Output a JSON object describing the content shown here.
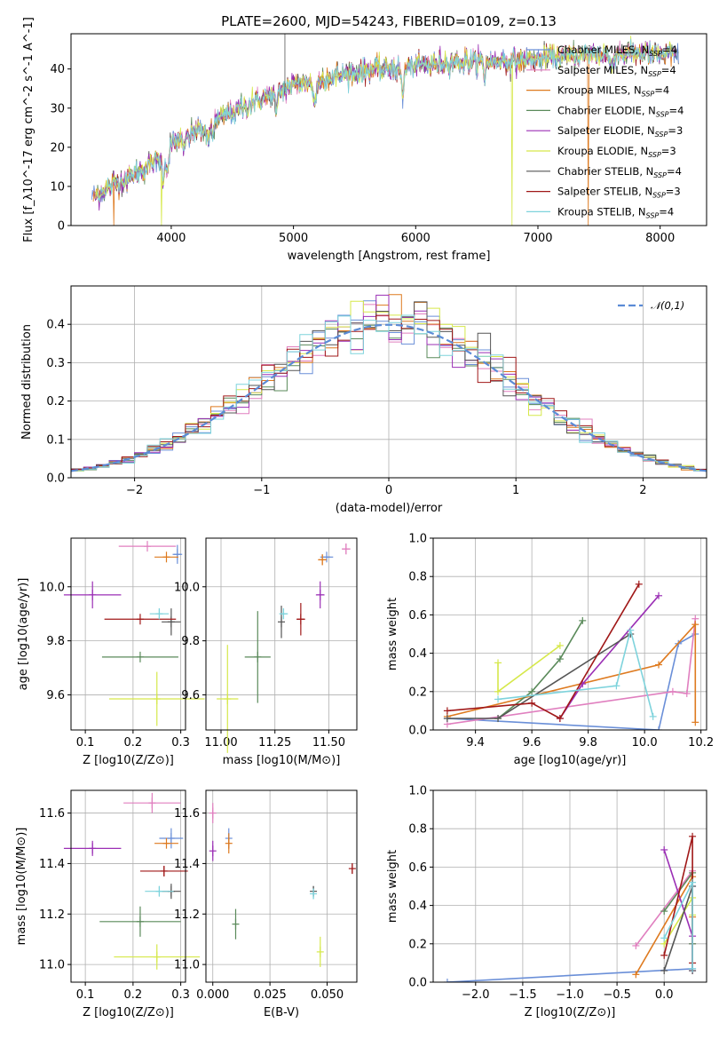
{
  "colors": {
    "Chabrier MILES": "#6a8fd8",
    "Salpeter MILES": "#e07fbf",
    "Kroupa MILES": "#de7a1f",
    "Chabrier ELODIE": "#5a8a5a",
    "Salpeter ELODIE": "#9b2fb5",
    "Kroupa ELODIE": "#d6e84a",
    "Chabrier STELIB": "#555555",
    "Salpeter STELIB": "#a01818",
    "Kroupa STELIB": "#7ed3dc",
    "gaussian": "#5b8bd6"
  },
  "chart_data": [
    {
      "id": "spectrum",
      "type": "line",
      "title": "PLATE=2600, MJD=54243, FIBERID=0109, z=0.13",
      "xlabel": "wavelength [Angstrom, rest frame]",
      "ylabel": "Flux [f_λ10^-17 erg cm^-2 s^-1 A^-1]",
      "xlim": [
        3180,
        8380
      ],
      "ylim": [
        0,
        49
      ],
      "xticks": [
        "4000",
        "5000",
        "6000",
        "7000",
        "8000"
      ],
      "yticks": [
        "0",
        "10",
        "20",
        "30",
        "40"
      ],
      "legend_position": "right",
      "legend": [
        {
          "name": "Chabrier MILES",
          "nssp": "4"
        },
        {
          "name": "Salpeter MILES",
          "nssp": "4"
        },
        {
          "name": "Kroupa MILES",
          "nssp": "4"
        },
        {
          "name": "Chabrier ELODIE",
          "nssp": "4"
        },
        {
          "name": "Salpeter ELODIE",
          "nssp": "3"
        },
        {
          "name": "Kroupa ELODIE",
          "nssp": "3"
        },
        {
          "name": "Chabrier STELIB",
          "nssp": "4"
        },
        {
          "name": "Salpeter STELIB",
          "nssp": "3"
        },
        {
          "name": "Kroupa STELIB",
          "nssp": "4"
        }
      ],
      "continuum": {
        "x": [
          3350,
          3500,
          3700,
          3900,
          4000,
          4200,
          4500,
          4800,
          5000,
          5300,
          5600,
          5900,
          6200,
          6500,
          6800,
          7000,
          7300,
          7600,
          7900,
          8150
        ],
        "y": [
          7,
          10,
          13,
          17,
          21,
          24,
          29,
          33,
          36,
          38,
          39.5,
          40.5,
          41.5,
          42,
          42,
          42.5,
          43.5,
          44,
          44,
          43.5
        ]
      },
      "dips": [
        {
          "x": 3530,
          "model": "Kroupa MILES",
          "y": 0
        },
        {
          "x": 3920,
          "model": "Kroupa ELODIE",
          "y": 0
        },
        {
          "x": 6790,
          "model": "Kroupa ELODIE",
          "y": 0
        },
        {
          "x": 7410,
          "model": "Kroupa MILES",
          "y": 0
        }
      ]
    },
    {
      "id": "residuals",
      "type": "line",
      "xlabel": "(data-model)/error",
      "ylabel": "Normed distribution",
      "xlim": [
        -2.5,
        2.5
      ],
      "ylim": [
        0,
        0.5
      ],
      "xticks": [
        "−2",
        "−1",
        "0",
        "1",
        "2"
      ],
      "yticks": [
        "0.0",
        "0.1",
        "0.2",
        "0.3",
        "0.4"
      ],
      "grid": true,
      "legend_position": "top-right",
      "legend": [
        "𝒩(0,1)"
      ],
      "bins": 50,
      "series": "histogram of normalised residuals for each of the nine models, following a unit normal"
    },
    {
      "id": "age-Z",
      "type": "scatter",
      "xlabel": "Z [log10(Z/Z⊙)]",
      "ylabel": "age  [log10(age/yr)]",
      "xlim": [
        0.07,
        0.31
      ],
      "ylim": [
        9.47,
        10.18
      ],
      "xticks": [
        "0.1",
        "0.2",
        "0.3"
      ],
      "yticks": [
        "9.6",
        "9.8",
        "10.0"
      ],
      "grid": true,
      "points": [
        {
          "model": "Chabrier MILES",
          "x": 0.293,
          "y": 10.12,
          "xerr": 0.01,
          "yerr": 0.035
        },
        {
          "model": "Salpeter MILES",
          "x": 0.23,
          "y": 10.15,
          "xerr": 0.06,
          "yerr": 0.0
        },
        {
          "model": "Kroupa MILES",
          "x": 0.27,
          "y": 10.11,
          "xerr": 0.025,
          "yerr": 0.0
        },
        {
          "model": "Chabrier ELODIE",
          "x": 0.215,
          "y": 9.74,
          "xerr": 0.08,
          "yerr": 0.0
        },
        {
          "model": "Salpeter ELODIE",
          "x": 0.115,
          "y": 9.97,
          "xerr": 0.06,
          "yerr": 0.05
        },
        {
          "model": "Kroupa ELODIE",
          "x": 0.25,
          "y": 9.585,
          "xerr": 0.1,
          "yerr": 0.1
        },
        {
          "model": "Chabrier STELIB",
          "x": 0.28,
          "y": 9.87,
          "xerr": 0.02,
          "yerr": 0.05
        },
        {
          "model": "Salpeter STELIB",
          "x": 0.215,
          "y": 9.88,
          "xerr": 0.075,
          "yerr": 0.0
        },
        {
          "model": "Kroupa STELIB",
          "x": 0.255,
          "y": 9.9,
          "xerr": 0.02,
          "yerr": 0.02
        }
      ]
    },
    {
      "id": "age-mass",
      "type": "scatter",
      "xlabel": "mass [log10(M/M⊙)]",
      "ylabel": "",
      "xlim": [
        10.93,
        11.63
      ],
      "ylim": [
        9.47,
        10.18
      ],
      "xticks": [
        "11.00",
        "11.25",
        "11.50"
      ],
      "yticks": [
        "9.6",
        "9.8",
        "10.0"
      ],
      "grid": true,
      "points": [
        {
          "model": "Chabrier MILES",
          "x": 11.49,
          "y": 10.11,
          "xerr": 0.03,
          "yerr": 0.0
        },
        {
          "model": "Salpeter MILES",
          "x": 11.58,
          "y": 10.14,
          "xerr": 0.02,
          "yerr": 0.02
        },
        {
          "model": "Kroupa MILES",
          "x": 11.47,
          "y": 10.1,
          "xerr": 0.02,
          "yerr": 0.02
        },
        {
          "model": "Chabrier ELODIE",
          "x": 11.17,
          "y": 9.74,
          "xerr": 0.06,
          "yerr": 0.17
        },
        {
          "model": "Salpeter ELODIE",
          "x": 11.46,
          "y": 9.97,
          "xerr": 0.02,
          "yerr": 0.05
        },
        {
          "model": "Kroupa ELODIE",
          "x": 11.03,
          "y": 9.585,
          "xerr": 0.05,
          "yerr": 0.2
        },
        {
          "model": "Chabrier STELIB",
          "x": 11.28,
          "y": 9.87,
          "xerr": 0.0,
          "yerr": 0.06
        },
        {
          "model": "Salpeter STELIB",
          "x": 11.37,
          "y": 9.88,
          "xerr": 0.02,
          "yerr": 0.06
        },
        {
          "model": "Kroupa STELIB",
          "x": 11.29,
          "y": 9.9,
          "xerr": 0.02,
          "yerr": 0.02
        }
      ]
    },
    {
      "id": "weight-age",
      "type": "line",
      "xlabel": "age  [log10(age/yr)]",
      "ylabel": "mass weight",
      "xlim": [
        9.25,
        10.22
      ],
      "ylim": [
        0,
        1
      ],
      "xticks": [
        "9.4",
        "9.6",
        "9.8",
        "10.0",
        "10.2"
      ],
      "yticks": [
        "0.0",
        "0.2",
        "0.4",
        "0.6",
        "0.8",
        "1.0"
      ],
      "grid": true,
      "series": [
        {
          "model": "Chabrier MILES",
          "x": [
            9.3,
            10.05,
            10.12,
            10.18
          ],
          "y": [
            0.06,
            0.0,
            0.45,
            0.5
          ]
        },
        {
          "model": "Salpeter MILES",
          "x": [
            9.3,
            10.1,
            10.15,
            10.18
          ],
          "y": [
            0.03,
            0.2,
            0.19,
            0.58
          ]
        },
        {
          "model": "Kroupa MILES",
          "x": [
            9.3,
            10.05,
            10.18,
            10.18
          ],
          "y": [
            0.07,
            0.34,
            0.55,
            0.04
          ]
        },
        {
          "model": "Chabrier ELODIE",
          "x": [
            9.48,
            9.6,
            9.7,
            9.78
          ],
          "y": [
            0.06,
            0.2,
            0.37,
            0.57
          ]
        },
        {
          "model": "Salpeter ELODIE",
          "x": [
            9.7,
            9.78,
            10.05
          ],
          "y": [
            0.06,
            0.24,
            0.7
          ]
        },
        {
          "model": "Kroupa ELODIE",
          "x": [
            9.48,
            9.48,
            9.7
          ],
          "y": [
            0.35,
            0.2,
            0.44
          ]
        },
        {
          "model": "Chabrier STELIB",
          "x": [
            9.3,
            9.48,
            9.95
          ],
          "y": [
            0.06,
            0.06,
            0.5
          ]
        },
        {
          "model": "Salpeter STELIB",
          "x": [
            9.3,
            9.6,
            9.7,
            9.98
          ],
          "y": [
            0.1,
            0.14,
            0.06,
            0.76
          ]
        },
        {
          "model": "Kroupa STELIB",
          "x": [
            9.48,
            9.9,
            9.95,
            10.03
          ],
          "y": [
            0.16,
            0.23,
            0.52,
            0.07
          ]
        }
      ]
    },
    {
      "id": "mass-Z",
      "type": "scatter",
      "xlabel": "Z [log10(Z/Z⊙)]",
      "ylabel": "mass [log10(M/M⊙)]",
      "xlim": [
        0.07,
        0.31
      ],
      "ylim": [
        10.93,
        11.69
      ],
      "xticks": [
        "0.1",
        "0.2",
        "0.3"
      ],
      "yticks": [
        "11.0",
        "11.2",
        "11.4",
        "11.6"
      ],
      "grid": true,
      "points": [
        {
          "model": "Chabrier MILES",
          "x": 0.28,
          "y": 11.5,
          "xerr": 0.025,
          "yerr": 0.04
        },
        {
          "model": "Salpeter MILES",
          "x": 0.24,
          "y": 11.64,
          "xerr": 0.06,
          "yerr": 0.04
        },
        {
          "model": "Kroupa MILES",
          "x": 0.27,
          "y": 11.48,
          "xerr": 0.025,
          "yerr": 0.0
        },
        {
          "model": "Chabrier ELODIE",
          "x": 0.215,
          "y": 11.17,
          "xerr": 0.085,
          "yerr": 0.06
        },
        {
          "model": "Salpeter ELODIE",
          "x": 0.115,
          "y": 11.46,
          "xerr": 0.06,
          "yerr": 0.03
        },
        {
          "model": "Kroupa ELODIE",
          "x": 0.25,
          "y": 11.03,
          "xerr": 0.09,
          "yerr": 0.05
        },
        {
          "model": "Chabrier STELIB",
          "x": 0.28,
          "y": 11.29,
          "xerr": 0.02,
          "yerr": 0.03
        },
        {
          "model": "Salpeter STELIB",
          "x": 0.265,
          "y": 11.37,
          "xerr": 0.05,
          "yerr": 0.02
        },
        {
          "model": "Kroupa STELIB",
          "x": 0.255,
          "y": 11.29,
          "xerr": 0.03,
          "yerr": 0.02
        }
      ]
    },
    {
      "id": "mass-ebv",
      "type": "scatter",
      "xlabel": "E(B-V)",
      "ylabel": "",
      "xlim": [
        -0.003,
        0.063
      ],
      "ylim": [
        10.93,
        11.69
      ],
      "xticks": [
        "0.000",
        "0.025",
        "0.050"
      ],
      "yticks": [
        "11.0",
        "11.2",
        "11.4",
        "11.6"
      ],
      "grid": true,
      "points": [
        {
          "model": "Chabrier MILES",
          "x": 0.007,
          "y": 11.5,
          "xerr": 0.0,
          "yerr": 0.04
        },
        {
          "model": "Salpeter MILES",
          "x": 0.0,
          "y": 11.6,
          "xerr": 0.0,
          "yerr": 0.04
        },
        {
          "model": "Kroupa MILES",
          "x": 0.007,
          "y": 11.48,
          "xerr": 0.0,
          "yerr": 0.04
        },
        {
          "model": "Chabrier ELODIE",
          "x": 0.01,
          "y": 11.16,
          "xerr": 0.0,
          "yerr": 0.06
        },
        {
          "model": "Salpeter ELODIE",
          "x": 0.0,
          "y": 11.45,
          "xerr": 0.0,
          "yerr": 0.04
        },
        {
          "model": "Kroupa ELODIE",
          "x": 0.047,
          "y": 11.05,
          "xerr": 0.0,
          "yerr": 0.06
        },
        {
          "model": "Chabrier STELIB",
          "x": 0.044,
          "y": 11.29,
          "xerr": 0.0,
          "yerr": 0.02
        },
        {
          "model": "Salpeter STELIB",
          "x": 0.061,
          "y": 11.38,
          "xerr": 0.0,
          "yerr": 0.02
        },
        {
          "model": "Kroupa STELIB",
          "x": 0.044,
          "y": 11.28,
          "xerr": 0.0,
          "yerr": 0.02
        }
      ]
    },
    {
      "id": "weight-Z",
      "type": "line",
      "xlabel": "Z [log10(Z/Z⊙)]",
      "ylabel": "mass weight",
      "xlim": [
        -2.45,
        0.45
      ],
      "ylim": [
        0,
        1
      ],
      "xticks": [
        "−2.0",
        "−1.5",
        "−1.0",
        "−0.5",
        "0.0"
      ],
      "yticks": [
        "0.0",
        "0.2",
        "0.4",
        "0.6",
        "0.8",
        "1.0"
      ],
      "grid": true,
      "series": [
        {
          "model": "Chabrier MILES",
          "x": [
            -2.3,
            0.3,
            0.3
          ],
          "y": [
            0.0,
            0.07,
            0.5
          ]
        },
        {
          "model": "Salpeter MILES",
          "x": [
            -0.3,
            0.3,
            0.3
          ],
          "y": [
            0.19,
            0.58,
            0.2
          ]
        },
        {
          "model": "Kroupa MILES",
          "x": [
            -0.3,
            0.3,
            0.3
          ],
          "y": [
            0.04,
            0.55,
            0.34
          ]
        },
        {
          "model": "Chabrier ELODIE",
          "x": [
            0.0,
            0.3,
            0.3
          ],
          "y": [
            0.37,
            0.57,
            0.2
          ]
        },
        {
          "model": "Salpeter ELODIE",
          "x": [
            0.0,
            0.3,
            0.3
          ],
          "y": [
            0.69,
            0.24,
            0.06
          ]
        },
        {
          "model": "Kroupa ELODIE",
          "x": [
            0.0,
            0.3,
            0.3
          ],
          "y": [
            0.2,
            0.44,
            0.35
          ]
        },
        {
          "model": "Chabrier STELIB",
          "x": [
            0.0,
            0.3,
            0.3
          ],
          "y": [
            0.06,
            0.5,
            0.06
          ]
        },
        {
          "model": "Salpeter STELIB",
          "x": [
            0.0,
            0.3,
            0.3
          ],
          "y": [
            0.14,
            0.76,
            0.1
          ]
        },
        {
          "model": "Kroupa STELIB",
          "x": [
            0.0,
            0.3,
            0.3
          ],
          "y": [
            0.23,
            0.52,
            0.07
          ]
        }
      ]
    }
  ]
}
